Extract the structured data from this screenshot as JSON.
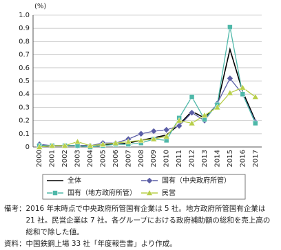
{
  "chart_data": {
    "type": "line",
    "unit_label": "(%)",
    "categories": [
      "2000",
      "2001",
      "2002",
      "2003",
      "2004",
      "2005",
      "2006",
      "2007",
      "2008",
      "2009",
      "2010",
      "2011",
      "2012",
      "2013",
      "2014",
      "2015",
      "2016",
      "2017"
    ],
    "ylim": [
      0,
      1
    ],
    "yticks": [
      0,
      0.1,
      0.2,
      0.3,
      0.4,
      0.5,
      0.6,
      0.7,
      0.8,
      0.9,
      {
        "value": 1,
        "label": "1.0"
      }
    ],
    "grid": true,
    "legend": "bottom",
    "series": [
      {
        "name": "全体",
        "color": "#000000",
        "marker": "none",
        "values": [
          0.01,
          0.01,
          0.01,
          0.01,
          0.01,
          0.02,
          0.02,
          0.03,
          0.05,
          0.07,
          0.09,
          0.17,
          0.27,
          0.22,
          0.32,
          0.74,
          0.42,
          0.2
        ]
      },
      {
        "name": "国有（中央政府所管）",
        "color": "#5b5ea6",
        "marker": "diamond",
        "values": [
          0.02,
          0.01,
          0.01,
          0.01,
          0.01,
          0.03,
          0.03,
          0.06,
          0.1,
          0.12,
          0.13,
          0.16,
          0.26,
          0.2,
          0.33,
          0.52,
          0.4,
          0.19
        ]
      },
      {
        "name": "国有（地方政府所管）",
        "color": "#4fb8a9",
        "marker": "square",
        "values": [
          0.01,
          0.01,
          0.01,
          0.01,
          0,
          0.01,
          0.02,
          0.02,
          0.03,
          0.06,
          0.05,
          0.22,
          0.38,
          0.21,
          0.32,
          0.91,
          0.4,
          0.18
        ]
      },
      {
        "name": "民営",
        "color": "#b8cf4a",
        "marker": "triangle",
        "values": [
          0,
          0.01,
          0.01,
          0.04,
          0.01,
          0.02,
          0.03,
          0.04,
          0.05,
          0.06,
          0.08,
          0.2,
          0.18,
          0.24,
          0.3,
          0.41,
          0.45,
          0.38
        ]
      }
    ]
  },
  "notes": {
    "remarks_label": "備考：",
    "remarks": "2016 年末時点で中央政府所管国有企業は 5 社。地方政府所管国有企業は 21 社。民営企業は 7 社。各グループにおける政府補助額の総和を売上高の総和で除した値。",
    "source_label": "資料：",
    "source": "中国鉄鋼上場 33 社「年度報告書」より作成。"
  }
}
